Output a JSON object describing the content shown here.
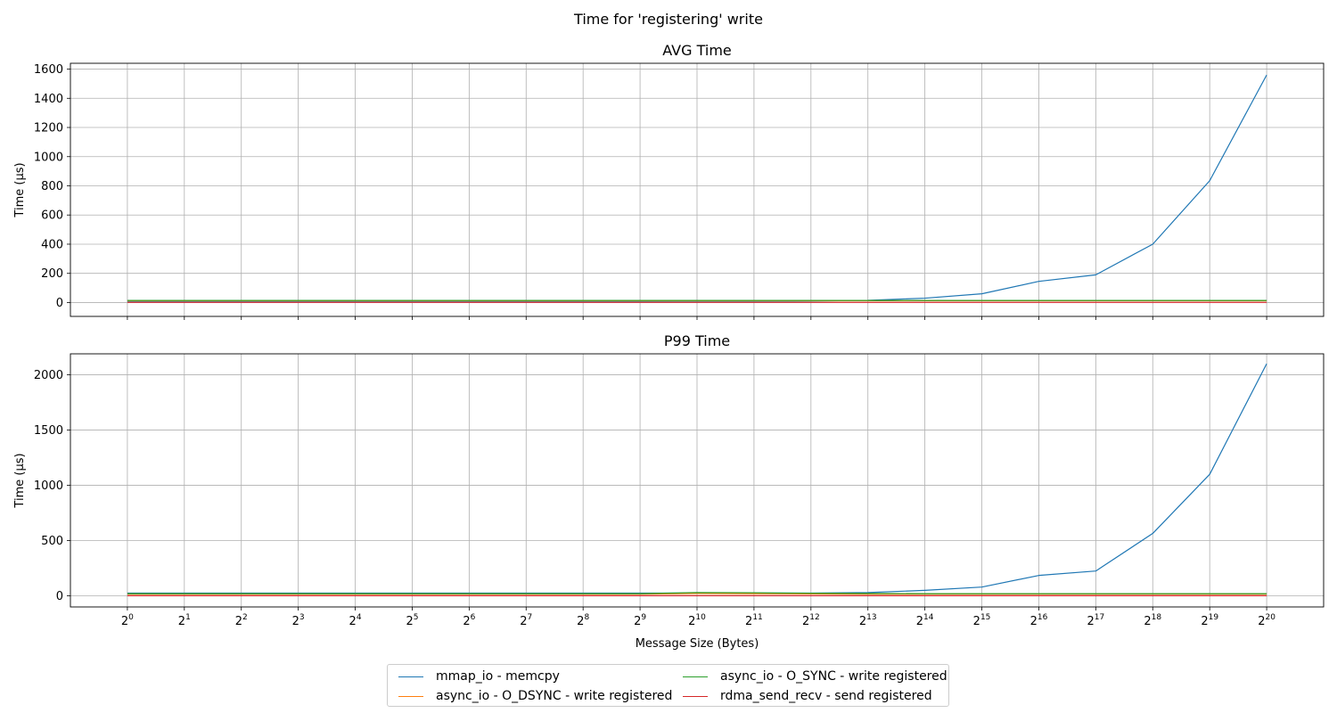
{
  "figure_title": "Time for 'registering' write",
  "colors": {
    "mmap": "#1f77b4",
    "dsync": "#ff7f0e",
    "osync": "#2ca02c",
    "rdma": "#d62728",
    "grid": "#b0b0b0"
  },
  "legend": {
    "items": [
      {
        "label": "mmap_io - memcpy",
        "color": "#1f77b4"
      },
      {
        "label": "async_io - O_DSYNC - write registered",
        "color": "#ff7f0e"
      },
      {
        "label": "async_io - O_SYNC - write registered",
        "color": "#2ca02c"
      },
      {
        "label": "rdma_send_recv - send registered",
        "color": "#d62728"
      }
    ]
  },
  "chart_data": [
    {
      "type": "line",
      "title": "AVG Time",
      "xlabel": "",
      "ylabel": "Time (µs)",
      "x": [
        1,
        2,
        4,
        8,
        16,
        32,
        64,
        128,
        256,
        512,
        1024,
        2048,
        4096,
        8192,
        16384,
        32768,
        65536,
        131072,
        262144,
        524288,
        1048576
      ],
      "xtick_labels": [
        "0",
        "1",
        "2",
        "3",
        "4",
        "5",
        "6",
        "7",
        "8",
        "9",
        "10",
        "11",
        "12",
        "13",
        "14",
        "15",
        "16",
        "17",
        "18",
        "19",
        "20"
      ],
      "x_scale": "log2",
      "yticks": [
        0,
        200,
        400,
        600,
        800,
        1000,
        1200,
        1400,
        1600
      ],
      "ylim": [
        -95,
        1640
      ],
      "grid": true,
      "series": [
        {
          "name": "mmap_io - memcpy",
          "values": [
            8,
            8,
            8,
            8,
            8,
            8,
            8,
            8,
            8,
            8,
            9,
            9,
            10,
            15,
            30,
            60,
            145,
            190,
            400,
            835,
            1560
          ]
        },
        {
          "name": "async_io - O_DSYNC - write registered",
          "values": [
            12,
            12,
            12,
            12,
            12,
            12,
            12,
            12,
            12,
            12,
            12,
            12,
            12,
            12,
            12,
            12,
            12,
            12,
            12,
            12,
            12
          ]
        },
        {
          "name": "async_io - O_SYNC - write registered",
          "values": [
            14,
            14,
            14,
            14,
            14,
            14,
            14,
            14,
            14,
            14,
            14,
            14,
            14,
            14,
            14,
            14,
            14,
            14,
            14,
            14,
            14
          ]
        },
        {
          "name": "rdma_send_recv - send registered",
          "values": [
            1,
            1,
            1,
            1,
            1,
            1,
            1,
            1,
            1,
            1,
            1,
            1,
            1,
            1,
            1,
            1,
            1,
            1,
            1,
            1,
            1
          ]
        }
      ]
    },
    {
      "type": "line",
      "title": "P99 Time",
      "xlabel": "Message Size (Bytes)",
      "ylabel": "Time (µs)",
      "x": [
        1,
        2,
        4,
        8,
        16,
        32,
        64,
        128,
        256,
        512,
        1024,
        2048,
        4096,
        8192,
        16384,
        32768,
        65536,
        131072,
        262144,
        524288,
        1048576
      ],
      "xtick_labels": [
        "0",
        "1",
        "2",
        "3",
        "4",
        "5",
        "6",
        "7",
        "8",
        "9",
        "10",
        "11",
        "12",
        "13",
        "14",
        "15",
        "16",
        "17",
        "18",
        "19",
        "20"
      ],
      "x_scale": "log2",
      "yticks": [
        0,
        500,
        1000,
        1500,
        2000
      ],
      "ylim": [
        -100,
        2190
      ],
      "grid": true,
      "series": [
        {
          "name": "mmap_io - memcpy",
          "values": [
            25,
            25,
            25,
            25,
            25,
            25,
            25,
            25,
            25,
            25,
            25,
            25,
            25,
            30,
            50,
            80,
            185,
            225,
            565,
            1100,
            2100
          ]
        },
        {
          "name": "async_io - O_DSYNC - write registered",
          "values": [
            16,
            16,
            16,
            16,
            16,
            16,
            16,
            16,
            16,
            16,
            22,
            20,
            18,
            16,
            16,
            16,
            16,
            16,
            16,
            16,
            16
          ]
        },
        {
          "name": "async_io - O_SYNC - write registered",
          "values": [
            20,
            20,
            20,
            20,
            20,
            20,
            20,
            20,
            20,
            20,
            30,
            28,
            24,
            22,
            20,
            20,
            20,
            20,
            20,
            20,
            20
          ]
        },
        {
          "name": "rdma_send_recv - send registered",
          "values": [
            2,
            2,
            2,
            2,
            2,
            2,
            2,
            2,
            2,
            2,
            2,
            2,
            2,
            2,
            2,
            2,
            2,
            2,
            2,
            2,
            2
          ]
        }
      ]
    }
  ]
}
